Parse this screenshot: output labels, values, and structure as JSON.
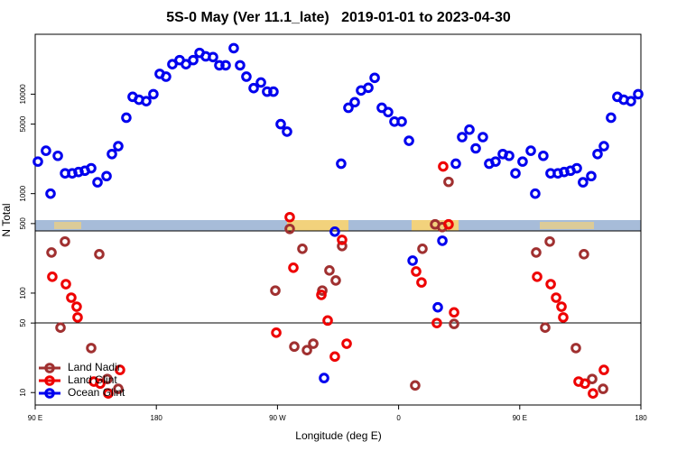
{
  "chart_data": {
    "type": "scatter",
    "title": "5S-0 May (Ver 11.1_late)   2019-01-01 to 2023-04-30",
    "xlabel": "Longitude (deg E)",
    "ylabel": "N Total",
    "xlim": [
      90,
      540
    ],
    "xticks": [
      {
        "value": 90,
        "label": "90 E"
      },
      180,
      {
        "value": 270,
        "label": "90 W"
      },
      {
        "value": 360,
        "label": "0"
      },
      {
        "value": 450,
        "label": "90 E"
      },
      {
        "value": 540,
        "label": "180"
      }
    ],
    "ylim": [
      7.5,
      40000
    ],
    "ylog": true,
    "yticks": [
      10,
      50,
      100,
      500,
      1000,
      5000,
      10000
    ],
    "legend": "lower left",
    "series": [
      {
        "name": "Land Nadir",
        "color": "#a03030",
        "x": [
          102.1,
          112.1,
          108.8,
          137.6,
          131.6,
          143.6,
          151.7,
          268.4,
          279.1,
          288.5,
          282.5,
          291.9,
          296.6,
          303.3,
          308.6,
          313.3,
          318.0,
          372.3,
          377.7,
          387.1,
          397.1,
          392.4,
          401.2,
          462.2,
          472.3,
          468.9,
          497.7,
          491.7,
          503.8,
          511.9
        ],
        "values": [
          256,
          330,
          45,
          246,
          28,
          13.7,
          10.9,
          106,
          442,
          279,
          29,
          26.7,
          31,
          106,
          169,
          134,
          297,
          11.8,
          279,
          491,
          1313,
          461,
          49,
          256,
          330,
          45,
          246,
          28,
          13.7,
          10.9
        ]
      },
      {
        "name": "Land Glint",
        "color": "#ee0000",
        "x": [
          102.7,
          112.8,
          116.8,
          120.8,
          121.5,
          133.6,
          138.3,
          144.3,
          153.0,
          269.1,
          279.1,
          281.8,
          302.6,
          307.3,
          312.6,
          318.0,
          321.4,
          373.0,
          377.0,
          388.4,
          393.1,
          397.1,
          401.2,
          462.9,
          473.0,
          477.0,
          481.0,
          482.3,
          493.7,
          498.4,
          504.4,
          512.5
        ],
        "values": [
          146,
          123,
          90,
          73,
          57,
          12.9,
          12.3,
          9.8,
          16.9,
          40,
          580,
          180,
          96,
          53,
          23,
          343,
          31,
          165,
          128,
          50,
          1875,
          491,
          64,
          146,
          123,
          90,
          73,
          57,
          12.9,
          12.3,
          9.8,
          16.9
        ]
      },
      {
        "name": "Ocean Glint",
        "color": "#0000ee",
        "x": [
          92.0,
          98.0,
          101.4,
          106.8,
          112.2,
          117.5,
          122.2,
          126.9,
          131.6,
          136.3,
          143.0,
          147.0,
          151.7,
          157.7,
          162.4,
          167.1,
          172.5,
          177.8,
          182.5,
          187.2,
          191.9,
          197.3,
          202.0,
          207.4,
          212.1,
          216.7,
          222.1,
          226.8,
          231.5,
          237.5,
          242.2,
          246.9,
          252.3,
          257.7,
          262.3,
          267.0,
          272.4,
          277.1,
          304.6,
          312.6,
          317.3,
          322.7,
          327.4,
          332.1,
          337.5,
          342.2,
          347.5,
          352.2,
          356.9,
          362.3,
          367.7,
          370.4,
          389.1,
          392.5,
          402.5,
          407.2,
          412.6,
          417.3,
          422.6,
          427.3,
          432.0,
          437.4,
          442.1,
          446.8,
          452.1,
          458.2,
          461.5,
          467.5,
          472.9,
          478.3,
          483.0,
          487.7,
          492.4,
          497.0,
          503.1,
          507.8,
          512.5,
          517.8,
          522.5,
          527.2,
          532.6,
          538.0
        ],
        "values": [
          2100,
          2700,
          1000,
          2400,
          1600,
          1600,
          1650,
          1700,
          1800,
          1300,
          1500,
          2500,
          3000,
          5800,
          9400,
          8800,
          8500,
          10000,
          16000,
          15000,
          20000,
          22000,
          20000,
          22000,
          26000,
          24000,
          23600,
          19500,
          19500,
          29000,
          19500,
          15000,
          11500,
          13100,
          10600,
          10600,
          5000,
          4200,
          14,
          415,
          2000,
          7300,
          8300,
          10900,
          11600,
          14600,
          7300,
          6600,
          5300,
          5300,
          3400,
          212,
          72,
          336,
          2000,
          3700,
          4400,
          2850,
          3700,
          2000,
          2100,
          2500,
          2400,
          1600,
          2100,
          2700,
          1000,
          2400,
          1600,
          1600,
          1650,
          1700,
          1800,
          1300,
          1500,
          2500,
          3000,
          5800,
          9400,
          8800,
          8500,
          10000
        ]
      }
    ]
  }
}
